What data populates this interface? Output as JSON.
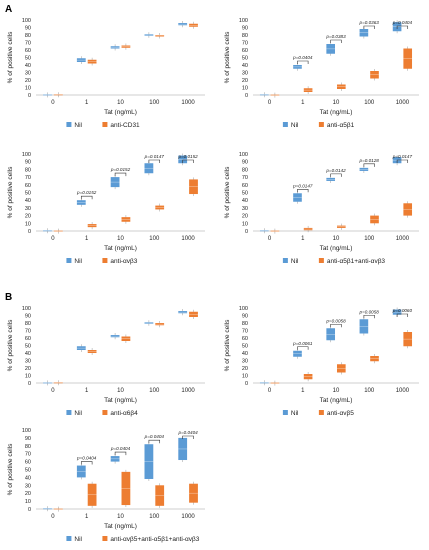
{
  "panels": [
    {
      "label": "A"
    },
    {
      "label": "B"
    }
  ],
  "colors": {
    "nil": "#5b9bd5",
    "antagonist": "#ed7d31",
    "axis": "#bfbfbf"
  },
  "chart_data": [
    {
      "type": "box",
      "ylabel": "% of positive cells",
      "xlabel": "Tat (ng/mL)",
      "ylim": [
        0,
        100
      ],
      "yticks": [
        0,
        10,
        20,
        30,
        40,
        50,
        60,
        70,
        80,
        90,
        100
      ],
      "categories": [
        "0",
        "1",
        "10",
        "100",
        "1000"
      ],
      "series": [
        {
          "name": "Nil",
          "boxes": [
            [
              0,
              0.8
            ],
            [
              44,
              49
            ],
            [
              62,
              65
            ],
            [
              79,
              81
            ],
            [
              93,
              96
            ]
          ]
        },
        {
          "name": "anti-CD31",
          "boxes": [
            [
              0,
              1
            ],
            [
              42,
              47
            ],
            [
              63,
              66
            ],
            [
              78,
              80
            ],
            [
              91,
              95
            ]
          ]
        }
      ],
      "pvalues": []
    },
    {
      "type": "box",
      "ylabel": "% of positive cells",
      "xlabel": "Tat (ng/mL)",
      "ylim": [
        0,
        100
      ],
      "yticks": [
        0,
        10,
        20,
        30,
        40,
        50,
        60,
        70,
        80,
        90,
        100
      ],
      "categories": [
        "0",
        "1",
        "10",
        "100",
        "1000"
      ],
      "series": [
        {
          "name": "Nil",
          "boxes": [
            [
              0,
              1
            ],
            [
              35,
              40
            ],
            [
              55,
              68
            ],
            [
              78,
              88
            ],
            [
              85,
              97
            ]
          ]
        },
        {
          "name": "anti-α5β1",
          "boxes": [
            [
              0,
              0.5
            ],
            [
              4,
              9
            ],
            [
              8,
              14
            ],
            [
              22,
              32
            ],
            [
              35,
              62
            ]
          ]
        }
      ],
      "pvalues": [
        "p=0.0404",
        "p=0.0383",
        "p=0.0363",
        "p=0.0404"
      ]
    },
    {
      "type": "box",
      "ylabel": "% of positive cells",
      "xlabel": "Tat (ng/mL)",
      "ylim": [
        0,
        100
      ],
      "yticks": [
        0,
        10,
        20,
        30,
        40,
        50,
        60,
        70,
        80,
        90,
        100
      ],
      "categories": [
        "0",
        "1",
        "10",
        "100",
        "1000"
      ],
      "series": [
        {
          "name": "Nil",
          "boxes": [
            [
              0,
              1
            ],
            [
              34,
              40
            ],
            [
              57,
              70
            ],
            [
              75,
              88
            ],
            [
              88,
              98
            ]
          ]
        },
        {
          "name": "anti-αvβ3",
          "boxes": [
            [
              0,
              0.5
            ],
            [
              5,
              9
            ],
            [
              12,
              18
            ],
            [
              28,
              33
            ],
            [
              48,
              67
            ]
          ]
        }
      ],
      "pvalues": [
        "p=0.0152",
        "p=0.0152",
        "p=0.0147",
        "p=0.0152"
      ]
    },
    {
      "type": "box",
      "ylabel": "% of positive cells",
      "xlabel": "Tat (ng/mL)",
      "ylim": [
        0,
        100
      ],
      "yticks": [
        0,
        10,
        20,
        30,
        40,
        50,
        60,
        70,
        80,
        90,
        100
      ],
      "categories": [
        "0",
        "1",
        "10",
        "100",
        "1000"
      ],
      "series": [
        {
          "name": "Nil",
          "boxes": [
            [
              0,
              1
            ],
            [
              38,
              49
            ],
            [
              65,
              69
            ],
            [
              78,
              82
            ],
            [
              88,
              96
            ]
          ]
        },
        {
          "name": "anti-α5β1+anti-αvβ3",
          "boxes": [
            [
              0,
              0.5
            ],
            [
              1,
              4
            ],
            [
              4,
              7
            ],
            [
              10,
              20
            ],
            [
              20,
              36
            ]
          ]
        }
      ],
      "pvalues": [
        "p=0.0147",
        "p=0.0142",
        "p=0.0128",
        "p=0.0147"
      ]
    },
    {
      "type": "box",
      "ylabel": "% of positive cells",
      "xlabel": "Tat (ng/mL)",
      "ylim": [
        0,
        100
      ],
      "yticks": [
        0,
        10,
        20,
        30,
        40,
        50,
        60,
        70,
        80,
        90,
        100
      ],
      "categories": [
        "0",
        "1",
        "10",
        "100",
        "1000"
      ],
      "series": [
        {
          "name": "Nil",
          "boxes": [
            [
              0,
              0.8
            ],
            [
              44,
              49
            ],
            [
              61,
              64
            ],
            [
              79,
              81
            ],
            [
              93,
              96
            ]
          ]
        },
        {
          "name": "anti-α6β4",
          "boxes": [
            [
              0,
              1
            ],
            [
              40,
              44
            ],
            [
              56,
              62
            ],
            [
              77,
              80
            ],
            [
              88,
              95
            ]
          ]
        }
      ],
      "pvalues": []
    },
    {
      "type": "box",
      "ylabel": "% of positive cells",
      "xlabel": "Tat (ng/mL)",
      "ylim": [
        0,
        100
      ],
      "yticks": [
        0,
        10,
        20,
        30,
        40,
        50,
        60,
        70,
        80,
        90,
        100
      ],
      "categories": [
        "0",
        "1",
        "10",
        "100",
        "1000"
      ],
      "series": [
        {
          "name": "Nil",
          "boxes": [
            [
              0,
              1
            ],
            [
              35,
              43
            ],
            [
              57,
              73
            ],
            [
              66,
              85
            ],
            [
              91,
              98
            ]
          ]
        },
        {
          "name": "anti-αvβ5",
          "boxes": [
            [
              0,
              0.5
            ],
            [
              5,
              12
            ],
            [
              14,
              25
            ],
            [
              29,
              36
            ],
            [
              49,
              68
            ]
          ]
        }
      ],
      "pvalues": [
        "p=0.0061",
        "p=0.0058",
        "p=0.0058",
        "p=0.0060"
      ]
    },
    {
      "type": "box",
      "ylabel": "% of positive cells",
      "xlabel": "Tat (ng/mL)",
      "ylim": [
        0,
        100
      ],
      "yticks": [
        0,
        10,
        20,
        30,
        40,
        50,
        60,
        70,
        80,
        90,
        100
      ],
      "categories": [
        "0",
        "1",
        "10",
        "100",
        "1000"
      ],
      "series": [
        {
          "name": "Nil",
          "boxes": [
            [
              0,
              1
            ],
            [
              40,
              55
            ],
            [
              60,
              67
            ],
            [
              38,
              82
            ],
            [
              62,
              90
            ]
          ]
        },
        {
          "name": "anti-αvβ5+anti-α5β1+anti-αvβ3",
          "boxes": [
            [
              0,
              0.5
            ],
            [
              4,
              32
            ],
            [
              5,
              47
            ],
            [
              4,
              30
            ],
            [
              8,
              32
            ]
          ]
        }
      ],
      "pvalues": [
        "p=0.0404",
        "p=0.0404",
        "p=0.0404",
        "p=0.0404"
      ]
    }
  ]
}
